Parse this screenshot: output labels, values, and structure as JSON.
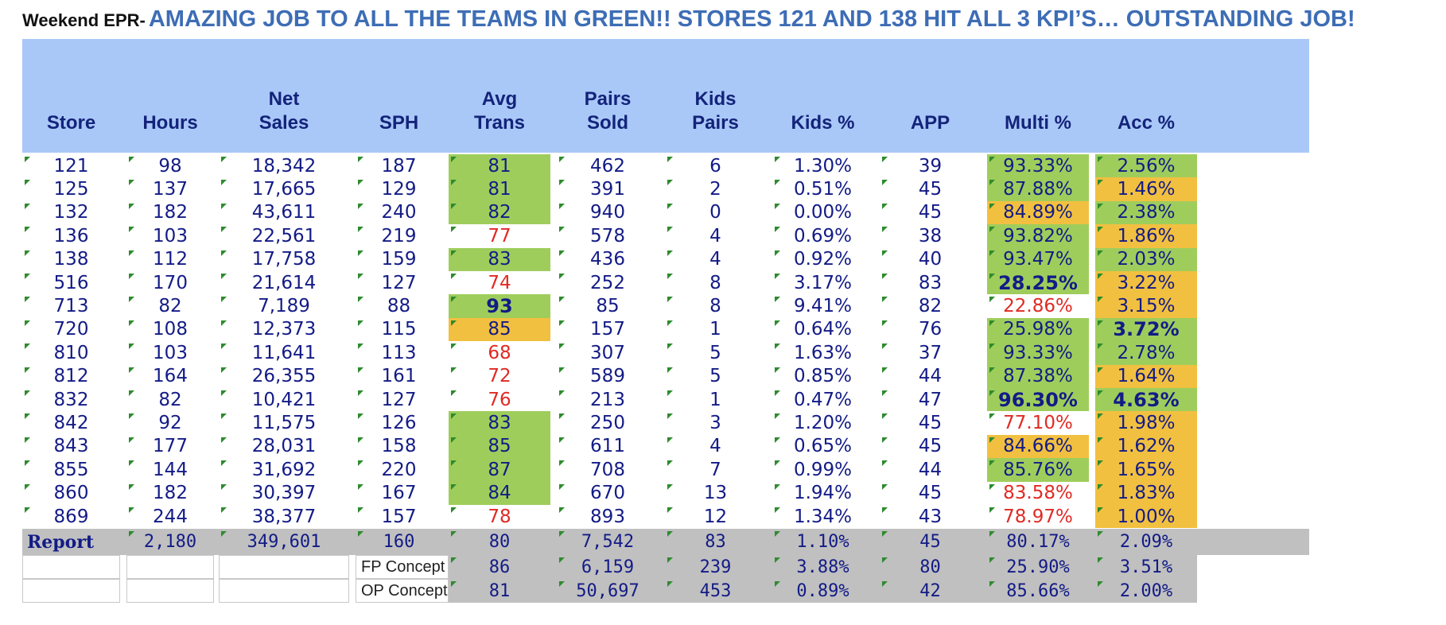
{
  "headline": {
    "prefix": "Weekend EPR-",
    "message": "AMAZING JOB TO ALL THE TEAMS IN GREEN!! STORES 121 AND 138 HIT ALL 3 KPI’S… OUTSTANDING JOB!"
  },
  "table": {
    "headers": [
      [
        "Store"
      ],
      [
        "Hours"
      ],
      [
        "Net",
        "Sales"
      ],
      [
        "SPH"
      ],
      [
        "Avg",
        "Trans"
      ],
      [
        "Pairs",
        "Sold"
      ],
      [
        "Kids",
        "Pairs"
      ],
      [
        "Kids %"
      ],
      [
        "APP"
      ],
      [
        "Multi %"
      ],
      [
        "Acc %"
      ]
    ],
    "colors": {
      "header_bg": "#a9c8f8",
      "green": "#9fcd5c",
      "orange": "#f2c040",
      "red_text": "#e02a24",
      "navy_text": "#131b86",
      "report_bg": "#c0c0c0"
    },
    "rows": [
      {
        "store": "121",
        "hours": "98",
        "net_sales": "18,342",
        "sph": "187",
        "avg_trans": "81",
        "pairs_sold": "462",
        "kids_pairs": "6",
        "kids_pct": "1.30%",
        "app": "39",
        "multi_pct": "93.33%",
        "acc_pct": "2.56%"
      },
      {
        "store": "125",
        "hours": "137",
        "net_sales": "17,665",
        "sph": "129",
        "avg_trans": "81",
        "pairs_sold": "391",
        "kids_pairs": "2",
        "kids_pct": "0.51%",
        "app": "45",
        "multi_pct": "87.88%",
        "acc_pct": "1.46%"
      },
      {
        "store": "132",
        "hours": "182",
        "net_sales": "43,611",
        "sph": "240",
        "avg_trans": "82",
        "pairs_sold": "940",
        "kids_pairs": "0",
        "kids_pct": "0.00%",
        "app": "45",
        "multi_pct": "84.89%",
        "acc_pct": "2.38%"
      },
      {
        "store": "136",
        "hours": "103",
        "net_sales": "22,561",
        "sph": "219",
        "avg_trans": "77",
        "pairs_sold": "578",
        "kids_pairs": "4",
        "kids_pct": "0.69%",
        "app": "38",
        "multi_pct": "93.82%",
        "acc_pct": "1.86%"
      },
      {
        "store": "138",
        "hours": "112",
        "net_sales": "17,758",
        "sph": "159",
        "avg_trans": "83",
        "pairs_sold": "436",
        "kids_pairs": "4",
        "kids_pct": "0.92%",
        "app": "40",
        "multi_pct": "93.47%",
        "acc_pct": "2.03%"
      },
      {
        "store": "516",
        "hours": "170",
        "net_sales": "21,614",
        "sph": "127",
        "avg_trans": "74",
        "pairs_sold": "252",
        "kids_pairs": "8",
        "kids_pct": "3.17%",
        "app": "83",
        "multi_pct": "28.25%",
        "acc_pct": "3.22%"
      },
      {
        "store": "713",
        "hours": "82",
        "net_sales": "7,189",
        "sph": "88",
        "avg_trans": "93",
        "pairs_sold": "85",
        "kids_pairs": "8",
        "kids_pct": "9.41%",
        "app": "82",
        "multi_pct": "22.86%",
        "acc_pct": "3.15%"
      },
      {
        "store": "720",
        "hours": "108",
        "net_sales": "12,373",
        "sph": "115",
        "avg_trans": "85",
        "pairs_sold": "157",
        "kids_pairs": "1",
        "kids_pct": "0.64%",
        "app": "76",
        "multi_pct": "25.98%",
        "acc_pct": "3.72%"
      },
      {
        "store": "810",
        "hours": "103",
        "net_sales": "11,641",
        "sph": "113",
        "avg_trans": "68",
        "pairs_sold": "307",
        "kids_pairs": "5",
        "kids_pct": "1.63%",
        "app": "37",
        "multi_pct": "93.33%",
        "acc_pct": "2.78%"
      },
      {
        "store": "812",
        "hours": "164",
        "net_sales": "26,355",
        "sph": "161",
        "avg_trans": "72",
        "pairs_sold": "589",
        "kids_pairs": "5",
        "kids_pct": "0.85%",
        "app": "44",
        "multi_pct": "87.38%",
        "acc_pct": "1.64%"
      },
      {
        "store": "832",
        "hours": "82",
        "net_sales": "10,421",
        "sph": "127",
        "avg_trans": "76",
        "pairs_sold": "213",
        "kids_pairs": "1",
        "kids_pct": "0.47%",
        "app": "47",
        "multi_pct": "96.30%",
        "acc_pct": "4.63%"
      },
      {
        "store": "842",
        "hours": "92",
        "net_sales": "11,575",
        "sph": "126",
        "avg_trans": "83",
        "pairs_sold": "250",
        "kids_pairs": "3",
        "kids_pct": "1.20%",
        "app": "45",
        "multi_pct": "77.10%",
        "acc_pct": "1.98%"
      },
      {
        "store": "843",
        "hours": "177",
        "net_sales": "28,031",
        "sph": "158",
        "avg_trans": "85",
        "pairs_sold": "611",
        "kids_pairs": "4",
        "kids_pct": "0.65%",
        "app": "45",
        "multi_pct": "84.66%",
        "acc_pct": "1.62%"
      },
      {
        "store": "855",
        "hours": "144",
        "net_sales": "31,692",
        "sph": "220",
        "avg_trans": "87",
        "pairs_sold": "708",
        "kids_pairs": "7",
        "kids_pct": "0.99%",
        "app": "44",
        "multi_pct": "85.76%",
        "acc_pct": "1.65%"
      },
      {
        "store": "860",
        "hours": "182",
        "net_sales": "30,397",
        "sph": "167",
        "avg_trans": "84",
        "pairs_sold": "670",
        "kids_pairs": "13",
        "kids_pct": "1.94%",
        "app": "45",
        "multi_pct": "83.58%",
        "acc_pct": "1.83%"
      },
      {
        "store": "869",
        "hours": "244",
        "net_sales": "38,377",
        "sph": "157",
        "avg_trans": "78",
        "pairs_sold": "893",
        "kids_pairs": "12",
        "kids_pct": "1.34%",
        "app": "43",
        "multi_pct": "78.97%",
        "acc_pct": "1.00%"
      }
    ],
    "report": {
      "label": "Report",
      "hours": "2,180",
      "net_sales": "349,601",
      "sph": "160",
      "avg_trans": "80",
      "pairs_sold": "7,542",
      "kids_pairs": "83",
      "kids_pct": "1.10%",
      "app": "45",
      "multi_pct": "80.17%",
      "acc_pct": "2.09%"
    },
    "concepts": [
      {
        "label": "FP Concept",
        "avg_trans": "86",
        "pairs_sold": "6,159",
        "kids_pairs": "239",
        "kids_pct": "3.88%",
        "app": "80",
        "multi_pct": "25.90%",
        "acc_pct": "3.51%"
      },
      {
        "label": "OP Concept",
        "avg_trans": "81",
        "pairs_sold": "50,697",
        "kids_pairs": "453",
        "kids_pct": "0.89%",
        "app": "42",
        "multi_pct": "85.66%",
        "acc_pct": "2.00%"
      }
    ],
    "highlights": {
      "avg_trans": [
        "g",
        "g",
        "g",
        "r",
        "g",
        "r",
        "gb",
        "o",
        "r",
        "r",
        "r",
        "g",
        "g",
        "g",
        "g",
        "r"
      ],
      "multi_pct": [
        "g",
        "g",
        "o",
        "g",
        "g",
        "gb",
        "r",
        "g",
        "g",
        "g",
        "gb",
        "r",
        "o",
        "g",
        "r",
        "r"
      ],
      "acc_pct": [
        "g",
        "o",
        "g",
        "o",
        "g",
        "o",
        "o",
        "gb",
        "g",
        "o",
        "gb",
        "o",
        "o",
        "o",
        "o",
        "o"
      ]
    }
  }
}
